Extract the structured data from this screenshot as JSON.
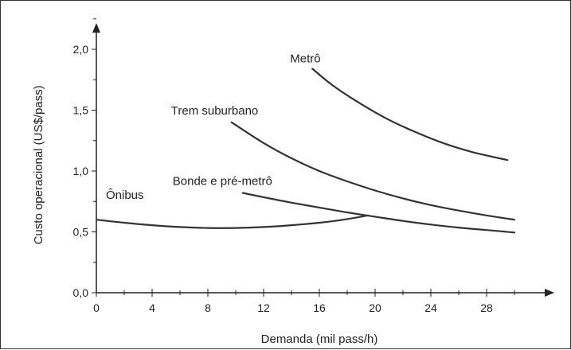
{
  "chart_data": {
    "type": "line",
    "title": "",
    "xlabel": "Demanda (mil pass/h)",
    "ylabel": "Custo operacional (US$/pass)",
    "xlim": [
      0,
      32
    ],
    "ylim": [
      0,
      2.3
    ],
    "x_ticks": [
      0,
      4,
      8,
      12,
      16,
      20,
      24,
      28
    ],
    "x_tick_labels": [
      "0",
      "4",
      "8",
      "12",
      "16",
      "20",
      "24",
      "28"
    ],
    "y_ticks": [
      0,
      0.5,
      1.0,
      1.5,
      2.0
    ],
    "y_tick_labels": [
      "0,0",
      "0,5",
      "1,0",
      "1,5",
      "2,0"
    ],
    "grid": false,
    "legend": "none",
    "series": [
      {
        "name": "Ônibus",
        "x": [
          0,
          2,
          4,
          6,
          8,
          10,
          12,
          14,
          16,
          18,
          19.5
        ],
        "y": [
          0.6,
          0.575,
          0.555,
          0.54,
          0.532,
          0.532,
          0.54,
          0.555,
          0.575,
          0.605,
          0.635
        ]
      },
      {
        "name": "Bonde e pré-metrô",
        "x": [
          10.5,
          12,
          14,
          16,
          18,
          20,
          22,
          24,
          26,
          28,
          30
        ],
        "y": [
          0.82,
          0.785,
          0.74,
          0.7,
          0.66,
          0.625,
          0.59,
          0.56,
          0.535,
          0.515,
          0.495
        ]
      },
      {
        "name": "Trem suburbano",
        "x": [
          9.7,
          12,
          14,
          16,
          18,
          20,
          22,
          24,
          26,
          28,
          30
        ],
        "y": [
          1.4,
          1.23,
          1.105,
          1.0,
          0.915,
          0.84,
          0.775,
          0.72,
          0.675,
          0.635,
          0.6
        ]
      },
      {
        "name": "Metrô",
        "x": [
          15.5,
          17,
          19,
          21,
          23,
          25,
          27,
          29.5
        ],
        "y": [
          1.84,
          1.7,
          1.55,
          1.42,
          1.315,
          1.225,
          1.155,
          1.09
        ]
      }
    ]
  }
}
